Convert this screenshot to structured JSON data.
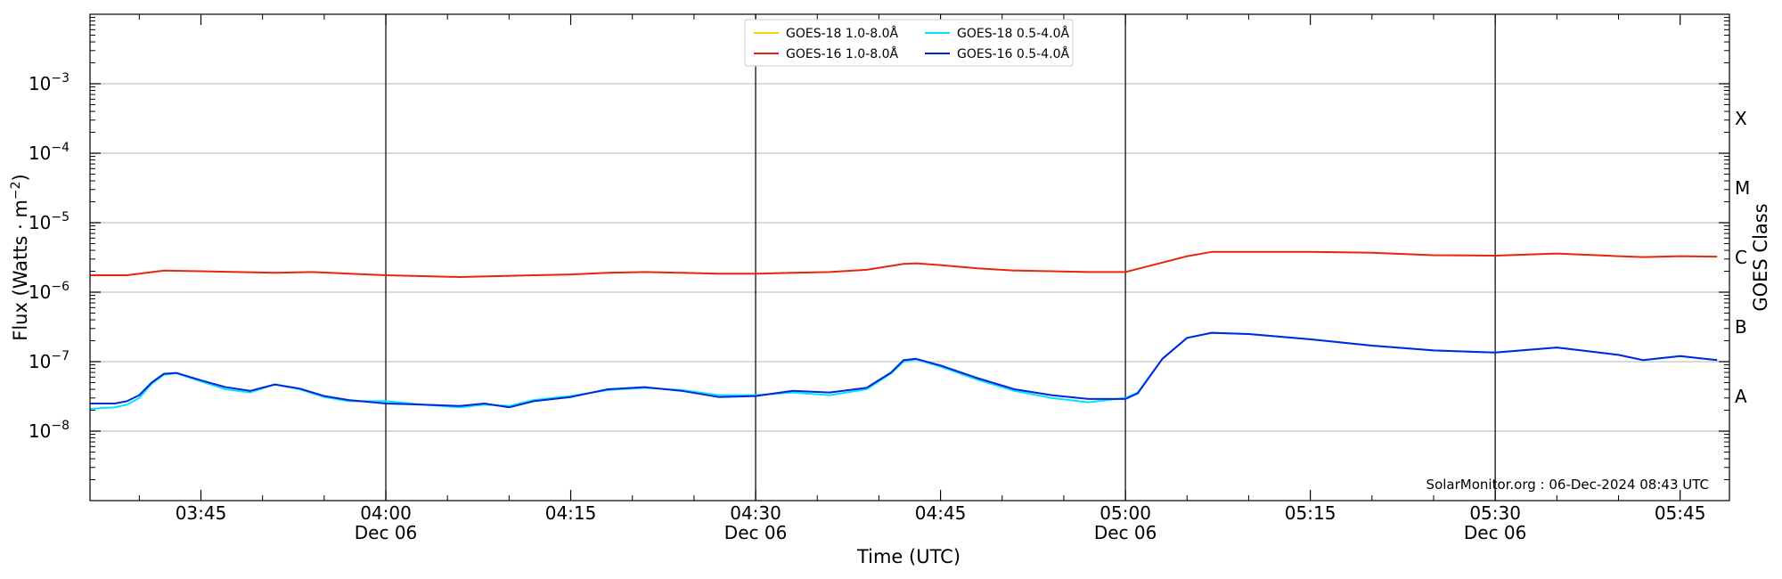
{
  "chart_data": {
    "type": "line",
    "xlabel": "Time (UTC)",
    "ylabel_main": "Flux (Watts · m",
    "ylabel_sup": "−2",
    "ylabel_close": ")",
    "y2label": "GOES Class",
    "credit": "SolarMonitor.org : 06-Dec-2024 08:43 UTC",
    "x_range": [
      "03:36",
      "05:49"
    ],
    "y_scale": "log",
    "ylim": [
      1e-09,
      0.01
    ],
    "x_ticks": [
      {
        "t": "03:45",
        "label": "03:45",
        "date": ""
      },
      {
        "t": "04:00",
        "label": "04:00",
        "date": "Dec 06"
      },
      {
        "t": "04:15",
        "label": "04:15",
        "date": ""
      },
      {
        "t": "04:30",
        "label": "04:30",
        "date": "Dec 06"
      },
      {
        "t": "04:45",
        "label": "04:45",
        "date": ""
      },
      {
        "t": "05:00",
        "label": "05:00",
        "date": "Dec 06"
      },
      {
        "t": "05:15",
        "label": "05:15",
        "date": ""
      },
      {
        "t": "05:30",
        "label": "05:30",
        "date": "Dec 06"
      },
      {
        "t": "05:45",
        "label": "05:45",
        "date": ""
      }
    ],
    "day_lines": [
      "04:00",
      "04:30",
      "05:00",
      "05:30"
    ],
    "y_ticks": [
      {
        "exp": -8,
        "base": "10",
        "sup": "−8"
      },
      {
        "exp": -7,
        "base": "10",
        "sup": "−7"
      },
      {
        "exp": -6,
        "base": "10",
        "sup": "−6"
      },
      {
        "exp": -5,
        "base": "10",
        "sup": "−5"
      },
      {
        "exp": -4,
        "base": "10",
        "sup": "−4"
      },
      {
        "exp": -3,
        "base": "10",
        "sup": "−3"
      }
    ],
    "goes_classes": [
      {
        "label": "A",
        "exp": -7.5
      },
      {
        "label": "B",
        "exp": -6.5
      },
      {
        "label": "C",
        "exp": -5.5
      },
      {
        "label": "M",
        "exp": -4.5
      },
      {
        "label": "X",
        "exp": -3.5
      }
    ],
    "legend": [
      {
        "name": "GOES-18 1.0-8.0Å",
        "color": "#f5d400"
      },
      {
        "name": "GOES-18 0.5-4.0Å",
        "color": "#00e5ff"
      },
      {
        "name": "GOES-16 1.0-8.0Å",
        "color": "#e8260c"
      },
      {
        "name": "GOES-16 0.5-4.0Å",
        "color": "#0026e0"
      }
    ],
    "series": [
      {
        "name": "GOES-16 1.0-8.0Å",
        "color": "#e8260c",
        "x": [
          "03:36",
          "03:39",
          "03:42",
          "03:45",
          "03:48",
          "03:51",
          "03:54",
          "03:57",
          "04:00",
          "04:03",
          "04:06",
          "04:09",
          "04:12",
          "04:15",
          "04:18",
          "04:21",
          "04:24",
          "04:27",
          "04:30",
          "04:33",
          "04:36",
          "04:39",
          "04:42",
          "04:43",
          "04:45",
          "04:48",
          "04:51",
          "04:54",
          "04:57",
          "05:00",
          "05:02",
          "05:05",
          "05:07",
          "05:10",
          "05:15",
          "05:20",
          "05:25",
          "05:30",
          "05:35",
          "05:40",
          "05:42",
          "05:45",
          "05:48"
        ],
        "y": [
          1.75e-06,
          1.75e-06,
          2.05e-06,
          2e-06,
          1.95e-06,
          1.9e-06,
          1.95e-06,
          1.85e-06,
          1.75e-06,
          1.7e-06,
          1.65e-06,
          1.7e-06,
          1.75e-06,
          1.8e-06,
          1.9e-06,
          1.95e-06,
          1.9e-06,
          1.85e-06,
          1.85e-06,
          1.9e-06,
          1.95e-06,
          2.1e-06,
          2.55e-06,
          2.6e-06,
          2.45e-06,
          2.2e-06,
          2.05e-06,
          2e-06,
          1.95e-06,
          1.95e-06,
          2.4e-06,
          3.3e-06,
          3.8e-06,
          3.8e-06,
          3.8e-06,
          3.7e-06,
          3.4e-06,
          3.35e-06,
          3.6e-06,
          3.3e-06,
          3.2e-06,
          3.3e-06,
          3.25e-06
        ]
      },
      {
        "name": "GOES-18 0.5-4.0Å",
        "color": "#00e5ff",
        "x": [
          "03:36",
          "03:38",
          "03:39",
          "03:40",
          "03:41",
          "03:42",
          "03:43",
          "03:45",
          "03:47",
          "03:49",
          "03:51",
          "03:53",
          "03:55",
          "03:57",
          "04:00",
          "04:03",
          "04:06",
          "04:08",
          "04:10",
          "04:12",
          "04:15",
          "04:18",
          "04:21",
          "04:24",
          "04:27",
          "04:30",
          "04:33",
          "04:36",
          "04:39",
          "04:41",
          "04:42",
          "04:43",
          "04:45",
          "04:48",
          "04:51",
          "04:54",
          "04:57",
          "05:00",
          "05:01",
          "05:03",
          "05:05",
          "05:07",
          "05:10",
          "05:15",
          "05:20",
          "05:25",
          "05:30",
          "05:35",
          "05:40",
          "05:42",
          "05:45",
          "05:48"
        ],
        "y": [
          2.1e-08,
          2.2e-08,
          2.4e-08,
          3e-08,
          4.8e-08,
          6.5e-08,
          6.8e-08,
          5.2e-08,
          4e-08,
          3.6e-08,
          4.7e-08,
          4e-08,
          3.1e-08,
          2.7e-08,
          2.7e-08,
          2.4e-08,
          2.2e-08,
          2.4e-08,
          2.3e-08,
          2.8e-08,
          3.2e-08,
          3.9e-08,
          4.2e-08,
          3.9e-08,
          3.3e-08,
          3.3e-08,
          3.6e-08,
          3.3e-08,
          4e-08,
          6.8e-08,
          1e-07,
          1.08e-07,
          8.5e-08,
          5.5e-08,
          3.8e-08,
          3e-08,
          2.6e-08,
          3e-08,
          3.6e-08,
          1.1e-07,
          2.2e-07,
          2.6e-07,
          2.5e-07,
          2.1e-07,
          1.7e-07,
          1.45e-07,
          1.35e-07,
          1.6e-07,
          1.25e-07,
          1.05e-07,
          1.2e-07,
          1.05e-07
        ]
      },
      {
        "name": "GOES-16 0.5-4.0Å",
        "color": "#0026e0",
        "x": [
          "03:36",
          "03:38",
          "03:39",
          "03:40",
          "03:41",
          "03:42",
          "03:43",
          "03:45",
          "03:47",
          "03:49",
          "03:51",
          "03:53",
          "03:55",
          "03:57",
          "04:00",
          "04:03",
          "04:06",
          "04:08",
          "04:10",
          "04:12",
          "04:15",
          "04:18",
          "04:21",
          "04:24",
          "04:27",
          "04:30",
          "04:33",
          "04:36",
          "04:39",
          "04:41",
          "04:42",
          "04:43",
          "04:45",
          "04:48",
          "04:51",
          "04:54",
          "04:57",
          "05:00",
          "05:01",
          "05:03",
          "05:05",
          "05:07",
          "05:10",
          "05:15",
          "05:20",
          "05:25",
          "05:30",
          "05:35",
          "05:40",
          "05:42",
          "05:45",
          "05:48"
        ],
        "y": [
          2.5e-08,
          2.5e-08,
          2.7e-08,
          3.3e-08,
          5e-08,
          6.7e-08,
          6.9e-08,
          5.4e-08,
          4.3e-08,
          3.8e-08,
          4.7e-08,
          4.1e-08,
          3.2e-08,
          2.8e-08,
          2.5e-08,
          2.4e-08,
          2.3e-08,
          2.5e-08,
          2.2e-08,
          2.7e-08,
          3.1e-08,
          4e-08,
          4.3e-08,
          3.8e-08,
          3.1e-08,
          3.2e-08,
          3.8e-08,
          3.6e-08,
          4.2e-08,
          7e-08,
          1.05e-07,
          1.1e-07,
          8.8e-08,
          5.8e-08,
          4e-08,
          3.3e-08,
          2.9e-08,
          2.9e-08,
          3.5e-08,
          1.1e-07,
          2.2e-07,
          2.6e-07,
          2.5e-07,
          2.1e-07,
          1.7e-07,
          1.45e-07,
          1.35e-07,
          1.6e-07,
          1.25e-07,
          1.05e-07,
          1.2e-07,
          1.05e-07
        ]
      }
    ]
  }
}
